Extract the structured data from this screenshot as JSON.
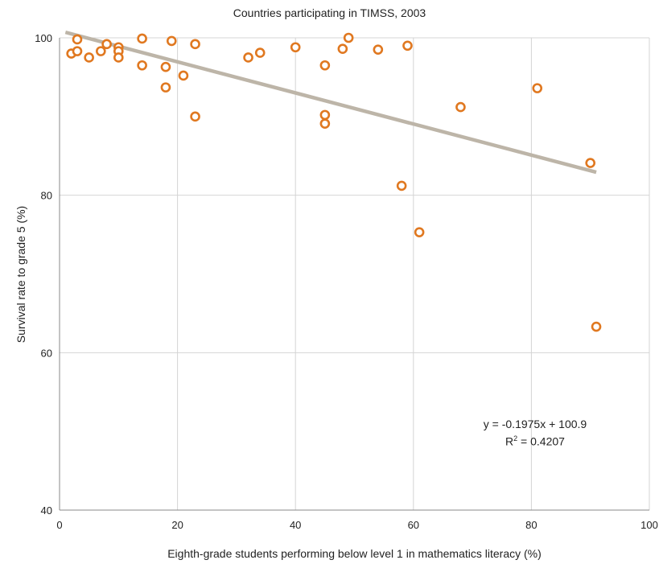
{
  "chart_data": {
    "type": "scatter",
    "title": "Countries participating in TIMSS, 2003",
    "xlabel": "Eighth-grade students performing below level 1 in mathematics literacy (%)",
    "ylabel": "Survival rate to grade 5 (%)",
    "xlim": [
      0,
      100
    ],
    "ylim": [
      40,
      100
    ],
    "xticks": [
      "0",
      "20",
      "40",
      "60",
      "80",
      "100"
    ],
    "yticks": [
      "40",
      "60",
      "80",
      "100"
    ],
    "grid": true,
    "point_color": "#E07820",
    "trend_color": "#BDB5A8",
    "points": [
      {
        "x": 2,
        "y": 98.0
      },
      {
        "x": 3,
        "y": 98.3
      },
      {
        "x": 3,
        "y": 99.8
      },
      {
        "x": 5,
        "y": 97.5
      },
      {
        "x": 7,
        "y": 98.3
      },
      {
        "x": 8,
        "y": 99.2
      },
      {
        "x": 10,
        "y": 98.8
      },
      {
        "x": 10,
        "y": 98.3
      },
      {
        "x": 10,
        "y": 97.5
      },
      {
        "x": 14,
        "y": 99.9
      },
      {
        "x": 14,
        "y": 96.5
      },
      {
        "x": 18,
        "y": 96.3
      },
      {
        "x": 18,
        "y": 93.7
      },
      {
        "x": 19,
        "y": 99.6
      },
      {
        "x": 21,
        "y": 95.2
      },
      {
        "x": 23,
        "y": 99.2
      },
      {
        "x": 23,
        "y": 90.0
      },
      {
        "x": 32,
        "y": 97.5
      },
      {
        "x": 34,
        "y": 98.1
      },
      {
        "x": 40,
        "y": 98.8
      },
      {
        "x": 45,
        "y": 96.5
      },
      {
        "x": 45,
        "y": 90.2
      },
      {
        "x": 45,
        "y": 89.1
      },
      {
        "x": 48,
        "y": 98.6
      },
      {
        "x": 49,
        "y": 100.0
      },
      {
        "x": 54,
        "y": 98.5
      },
      {
        "x": 58,
        "y": 81.2
      },
      {
        "x": 59,
        "y": 99.0
      },
      {
        "x": 61,
        "y": 75.3
      },
      {
        "x": 68,
        "y": 91.2
      },
      {
        "x": 81,
        "y": 93.6
      },
      {
        "x": 90,
        "y": 84.1
      },
      {
        "x": 91,
        "y": 63.3
      }
    ],
    "trendline": {
      "slope": -0.1975,
      "intercept": 100.9,
      "x_range": [
        1,
        91
      ],
      "equation": "y = -0.1975x + 100.9",
      "r2_label": "R",
      "r2_sup": "2",
      "r2_value": " = 0.4207"
    }
  }
}
